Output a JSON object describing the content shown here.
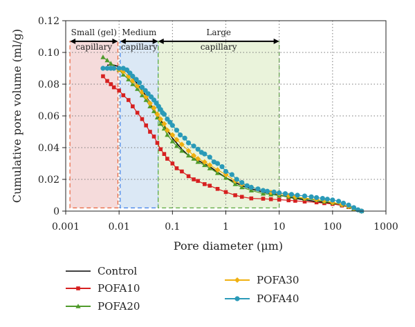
{
  "chart_data": {
    "type": "line",
    "title": "",
    "xlabel": "Pore diameter (μm)",
    "ylabel": "Cumulative pore volume (ml/g)",
    "x_scale": "log",
    "xlim": [
      0.001,
      1000
    ],
    "ylim": [
      0,
      0.12
    ],
    "x_ticks": [
      {
        "value": 0.001,
        "label": "0.001"
      },
      {
        "value": 0.01,
        "label": "0.01"
      },
      {
        "value": 0.1,
        "label": "0.1"
      },
      {
        "value": 1,
        "label": "1"
      },
      {
        "value": 10,
        "label": "10"
      },
      {
        "value": 100,
        "label": "100"
      },
      {
        "value": 1000,
        "label": "1000"
      }
    ],
    "y_ticks": [
      {
        "value": 0,
        "label": "0"
      },
      {
        "value": 0.02,
        "label": "0.02"
      },
      {
        "value": 0.04,
        "label": "0.04"
      },
      {
        "value": 0.06,
        "label": "0.06"
      },
      {
        "value": 0.08,
        "label": "0.08"
      },
      {
        "value": 0.1,
        "label": "0.10"
      },
      {
        "value": 0.12,
        "label": "0.12"
      }
    ],
    "grid": "dotted",
    "legend_position": "below",
    "regions": [
      {
        "label_lines": [
          "Small (gel)",
          "capillary"
        ],
        "x_from": 0.0012,
        "x_to": 0.0095,
        "y_top": 0.107,
        "fill": "#f2cfcf",
        "stroke": "#e8643c"
      },
      {
        "label_lines": [
          "Medium",
          "capillary"
        ],
        "x_from": 0.0105,
        "x_to": 0.054,
        "y_top": 0.107,
        "fill": "#cfe0f2",
        "stroke": "#3c7ee8"
      },
      {
        "label_lines": [
          "Large",
          "capillary"
        ],
        "x_from": 0.054,
        "x_to": 10,
        "y_top": 0.107,
        "fill": "#e3efcf",
        "stroke": "#5aa83c"
      }
    ],
    "series": [
      {
        "name": "Control",
        "color": "#000000",
        "marker": "none",
        "points": [
          [
            0.006,
            0.092
          ],
          [
            0.008,
            0.092
          ],
          [
            0.01,
            0.091
          ],
          [
            0.014,
            0.088
          ],
          [
            0.02,
            0.082
          ],
          [
            0.03,
            0.074
          ],
          [
            0.04,
            0.067
          ],
          [
            0.05,
            0.061
          ],
          [
            0.07,
            0.054
          ],
          [
            0.1,
            0.046
          ],
          [
            0.15,
            0.039
          ],
          [
            0.2,
            0.035
          ],
          [
            0.3,
            0.032
          ],
          [
            0.5,
            0.028
          ],
          [
            1,
            0.021
          ],
          [
            2,
            0.016
          ],
          [
            3,
            0.014
          ],
          [
            5,
            0.012
          ],
          [
            10,
            0.01
          ],
          [
            20,
            0.008
          ],
          [
            50,
            0.006
          ],
          [
            100,
            0.005
          ],
          [
            200,
            0.003
          ],
          [
            350,
            0.0
          ]
        ]
      },
      {
        "name": "POFA10",
        "color": "#d62020",
        "marker": "square",
        "points": [
          [
            0.005,
            0.085
          ],
          [
            0.006,
            0.082
          ],
          [
            0.007,
            0.08
          ],
          [
            0.008,
            0.078
          ],
          [
            0.01,
            0.076
          ],
          [
            0.012,
            0.073
          ],
          [
            0.015,
            0.07
          ],
          [
            0.018,
            0.066
          ],
          [
            0.022,
            0.062
          ],
          [
            0.027,
            0.058
          ],
          [
            0.032,
            0.054
          ],
          [
            0.038,
            0.05
          ],
          [
            0.045,
            0.047
          ],
          [
            0.052,
            0.043
          ],
          [
            0.06,
            0.039
          ],
          [
            0.07,
            0.036
          ],
          [
            0.08,
            0.033
          ],
          [
            0.1,
            0.03
          ],
          [
            0.12,
            0.027
          ],
          [
            0.15,
            0.025
          ],
          [
            0.2,
            0.022
          ],
          [
            0.25,
            0.02
          ],
          [
            0.3,
            0.019
          ],
          [
            0.4,
            0.017
          ],
          [
            0.5,
            0.016
          ],
          [
            0.7,
            0.014
          ],
          [
            1,
            0.012
          ],
          [
            1.5,
            0.01
          ],
          [
            2,
            0.009
          ],
          [
            3,
            0.008
          ],
          [
            5,
            0.0078
          ],
          [
            7,
            0.0075
          ],
          [
            10,
            0.0072
          ],
          [
            15,
            0.0068
          ],
          [
            20,
            0.0065
          ],
          [
            30,
            0.006
          ],
          [
            50,
            0.0055
          ],
          [
            70,
            0.005
          ],
          [
            100,
            0.0045
          ],
          [
            150,
            0.0035
          ],
          [
            200,
            0.0025
          ],
          [
            250,
            0.0015
          ],
          [
            350,
            0.0
          ]
        ]
      },
      {
        "name": "POFA20",
        "color": "#4e9a2a",
        "marker": "triangle",
        "points": [
          [
            0.005,
            0.097
          ],
          [
            0.006,
            0.095
          ],
          [
            0.007,
            0.093
          ],
          [
            0.008,
            0.091
          ],
          [
            0.01,
            0.089
          ],
          [
            0.012,
            0.086
          ],
          [
            0.015,
            0.083
          ],
          [
            0.018,
            0.08
          ],
          [
            0.022,
            0.077
          ],
          [
            0.027,
            0.073
          ],
          [
            0.032,
            0.07
          ],
          [
            0.038,
            0.066
          ],
          [
            0.045,
            0.063
          ],
          [
            0.052,
            0.059
          ],
          [
            0.06,
            0.055
          ],
          [
            0.07,
            0.052
          ],
          [
            0.08,
            0.048
          ],
          [
            0.1,
            0.044
          ],
          [
            0.12,
            0.041
          ],
          [
            0.15,
            0.038
          ],
          [
            0.2,
            0.035
          ],
          [
            0.25,
            0.033
          ],
          [
            0.3,
            0.031
          ],
          [
            0.4,
            0.029
          ],
          [
            0.5,
            0.027
          ],
          [
            0.7,
            0.024
          ],
          [
            1,
            0.021
          ],
          [
            1.5,
            0.017
          ],
          [
            2,
            0.015
          ],
          [
            3,
            0.013
          ],
          [
            5,
            0.011
          ],
          [
            7,
            0.0105
          ],
          [
            10,
            0.0098
          ],
          [
            15,
            0.009
          ],
          [
            20,
            0.0085
          ],
          [
            30,
            0.0078
          ],
          [
            50,
            0.007
          ],
          [
            70,
            0.006
          ],
          [
            100,
            0.0052
          ],
          [
            150,
            0.004
          ],
          [
            200,
            0.0028
          ],
          [
            250,
            0.0015
          ],
          [
            350,
            0.0
          ]
        ]
      },
      {
        "name": "POFA30",
        "color": "#f0b010",
        "marker": "diamond",
        "points": [
          [
            0.006,
            0.09
          ],
          [
            0.008,
            0.09
          ],
          [
            0.01,
            0.089
          ],
          [
            0.012,
            0.088
          ],
          [
            0.015,
            0.085
          ],
          [
            0.018,
            0.082
          ],
          [
            0.022,
            0.079
          ],
          [
            0.027,
            0.075
          ],
          [
            0.032,
            0.072
          ],
          [
            0.038,
            0.068
          ],
          [
            0.045,
            0.065
          ],
          [
            0.052,
            0.061
          ],
          [
            0.06,
            0.058
          ],
          [
            0.07,
            0.055
          ],
          [
            0.08,
            0.051
          ],
          [
            0.1,
            0.048
          ],
          [
            0.12,
            0.045
          ],
          [
            0.15,
            0.042
          ],
          [
            0.2,
            0.038
          ],
          [
            0.25,
            0.035
          ],
          [
            0.3,
            0.033
          ],
          [
            0.4,
            0.031
          ],
          [
            0.5,
            0.029
          ],
          [
            0.7,
            0.026
          ],
          [
            1,
            0.023
          ],
          [
            1.5,
            0.019
          ],
          [
            2,
            0.017
          ],
          [
            3,
            0.015
          ],
          [
            5,
            0.013
          ],
          [
            7,
            0.0118
          ],
          [
            10,
            0.0108
          ],
          [
            15,
            0.0098
          ],
          [
            20,
            0.009
          ],
          [
            30,
            0.0082
          ],
          [
            50,
            0.0073
          ],
          [
            70,
            0.0065
          ],
          [
            100,
            0.0055
          ],
          [
            150,
            0.0042
          ],
          [
            200,
            0.003
          ],
          [
            250,
            0.0017
          ],
          [
            350,
            0.0
          ]
        ]
      },
      {
        "name": "POFA40",
        "color": "#2a9ab8",
        "marker": "circle",
        "points": [
          [
            0.005,
            0.09
          ],
          [
            0.006,
            0.09
          ],
          [
            0.007,
            0.09
          ],
          [
            0.008,
            0.09
          ],
          [
            0.01,
            0.09
          ],
          [
            0.012,
            0.09
          ],
          [
            0.014,
            0.089
          ],
          [
            0.016,
            0.087
          ],
          [
            0.018,
            0.085
          ],
          [
            0.021,
            0.083
          ],
          [
            0.024,
            0.081
          ],
          [
            0.027,
            0.078
          ],
          [
            0.031,
            0.076
          ],
          [
            0.035,
            0.074
          ],
          [
            0.04,
            0.072
          ],
          [
            0.045,
            0.07
          ],
          [
            0.05,
            0.068
          ],
          [
            0.055,
            0.066
          ],
          [
            0.06,
            0.064
          ],
          [
            0.065,
            0.062
          ],
          [
            0.07,
            0.061
          ],
          [
            0.08,
            0.058
          ],
          [
            0.09,
            0.056
          ],
          [
            0.1,
            0.054
          ],
          [
            0.12,
            0.051
          ],
          [
            0.14,
            0.048
          ],
          [
            0.17,
            0.046
          ],
          [
            0.2,
            0.043
          ],
          [
            0.25,
            0.041
          ],
          [
            0.3,
            0.039
          ],
          [
            0.35,
            0.037
          ],
          [
            0.4,
            0.036
          ],
          [
            0.5,
            0.034
          ],
          [
            0.6,
            0.031
          ],
          [
            0.7,
            0.03
          ],
          [
            0.85,
            0.028
          ],
          [
            1,
            0.025
          ],
          [
            1.3,
            0.023
          ],
          [
            1.6,
            0.02
          ],
          [
            2,
            0.018
          ],
          [
            2.5,
            0.016
          ],
          [
            3,
            0.015
          ],
          [
            4,
            0.014
          ],
          [
            5,
            0.013
          ],
          [
            6,
            0.0125
          ],
          [
            8,
            0.012
          ],
          [
            10,
            0.0115
          ],
          [
            13,
            0.011
          ],
          [
            17,
            0.0105
          ],
          [
            22,
            0.01
          ],
          [
            30,
            0.0095
          ],
          [
            40,
            0.009
          ],
          [
            50,
            0.0085
          ],
          [
            65,
            0.008
          ],
          [
            80,
            0.0075
          ],
          [
            100,
            0.007
          ],
          [
            130,
            0.0062
          ],
          [
            160,
            0.005
          ],
          [
            200,
            0.0038
          ],
          [
            250,
            0.0022
          ],
          [
            300,
            0.0008
          ],
          [
            350,
            0.0
          ]
        ]
      }
    ]
  }
}
